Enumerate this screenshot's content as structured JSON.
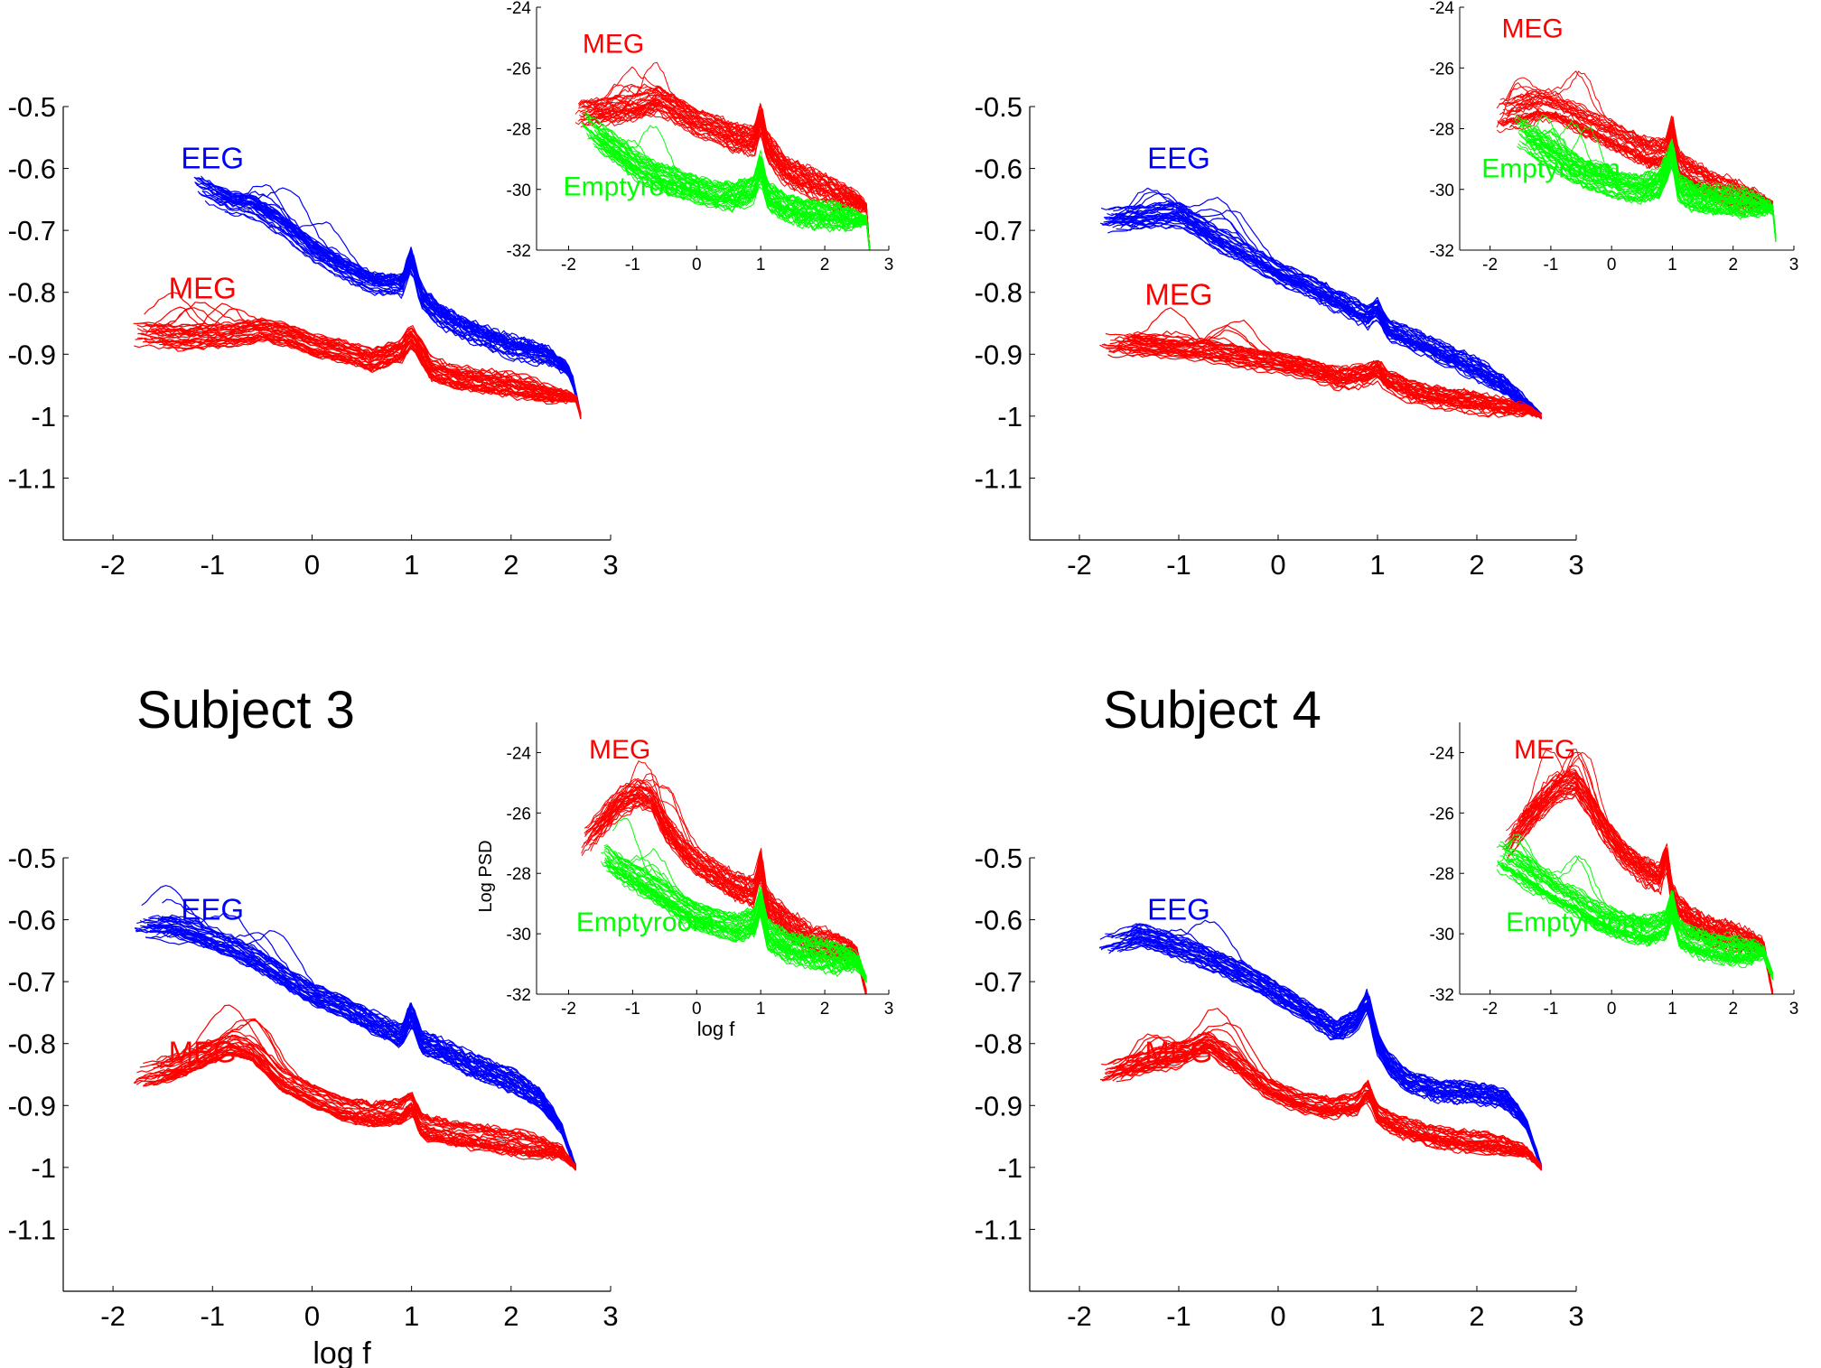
{
  "figure": {
    "left_tick_labels": [
      "-0.5",
      "-0.6",
      "-0.7",
      "-0.8",
      "-0.9",
      "-1",
      "-1.1"
    ],
    "x_tick_labels": [
      "-2",
      "-1",
      "0",
      "1",
      "2",
      "3"
    ],
    "inset_tick_labels": [
      "-24",
      "-26",
      "-28",
      "-30",
      "-32"
    ]
  },
  "colors": {
    "EEG": "#0000ff",
    "MEG": "#ff0000",
    "Emptyroom": "#00ff00",
    "axis": "#000000"
  },
  "chart_data": [
    {
      "type": "line",
      "panel": "top-left",
      "title": "",
      "xlabel": "",
      "ylabel": "",
      "xlim": [
        -2.5,
        3
      ],
      "ylim": [
        -1.2,
        -0.5
      ],
      "grid": false,
      "series": [
        {
          "name": "EEG",
          "x": [
            -1.2,
            -0.8,
            -0.6,
            -0.3,
            0,
            0.3,
            0.6,
            0.9,
            1.0,
            1.1,
            1.3,
            1.6,
            2.0,
            2.4,
            2.6,
            2.7
          ],
          "y": [
            -0.625,
            -0.655,
            -0.66,
            -0.69,
            -0.73,
            -0.76,
            -0.785,
            -0.79,
            -0.745,
            -0.81,
            -0.84,
            -0.865,
            -0.89,
            -0.905,
            -0.93,
            -1.0
          ]
        },
        {
          "name": "MEG",
          "x": [
            -1.8,
            -1.4,
            -1.0,
            -0.7,
            -0.5,
            -0.2,
            0,
            0.3,
            0.6,
            0.9,
            1.0,
            1.2,
            1.5,
            2.0,
            2.4,
            2.65,
            2.7
          ],
          "y": [
            -0.865,
            -0.87,
            -0.87,
            -0.865,
            -0.86,
            -0.87,
            -0.885,
            -0.895,
            -0.91,
            -0.895,
            -0.87,
            -0.925,
            -0.94,
            -0.95,
            -0.965,
            -0.97,
            -1.0
          ]
        }
      ],
      "inset": {
        "xlim": [
          -2.5,
          3
        ],
        "ylim": [
          -32,
          -24
        ],
        "xlabel": "",
        "ylabel": "",
        "series": [
          {
            "name": "MEG",
            "x": [
              -1.9,
              -1.5,
              -1.0,
              -0.6,
              -0.3,
              0,
              0.3,
              0.6,
              0.9,
              1.0,
              1.1,
              1.4,
              1.8,
              2.2,
              2.5,
              2.65,
              2.7
            ],
            "y": [
              -27.5,
              -27.4,
              -27.3,
              -27.0,
              -27.4,
              -27.8,
              -28.0,
              -28.3,
              -28.4,
              -27.6,
              -28.6,
              -29.4,
              -29.8,
              -30.2,
              -30.4,
              -30.6,
              -32
            ]
          },
          {
            "name": "Emptyroom",
            "x": [
              -1.8,
              -1.5,
              -1.2,
              -0.9,
              -0.6,
              -0.3,
              0,
              0.3,
              0.6,
              0.9,
              1.0,
              1.1,
              1.4,
              1.8,
              2.2,
              2.5,
              2.65,
              2.7
            ],
            "y": [
              -27.8,
              -28.3,
              -28.8,
              -29.3,
              -29.6,
              -29.8,
              -30.0,
              -30.2,
              -30.2,
              -30.0,
              -29.2,
              -30.2,
              -30.6,
              -30.8,
              -30.9,
              -31.0,
              -31.0,
              -32
            ]
          }
        ]
      }
    },
    {
      "type": "line",
      "panel": "top-right",
      "title": "",
      "xlabel": "",
      "ylabel": "",
      "xlim": [
        -2.5,
        3
      ],
      "ylim": [
        -1.2,
        -0.5
      ],
      "grid": false,
      "series": [
        {
          "name": "EEG",
          "x": [
            -1.8,
            -1.4,
            -1.0,
            -0.6,
            -0.2,
            0,
            0.3,
            0.6,
            0.9,
            1.0,
            1.1,
            1.3,
            1.6,
            2.0,
            2.3,
            2.5,
            2.65
          ],
          "y": [
            -0.685,
            -0.68,
            -0.675,
            -0.715,
            -0.75,
            -0.77,
            -0.79,
            -0.815,
            -0.84,
            -0.825,
            -0.86,
            -0.875,
            -0.895,
            -0.925,
            -0.955,
            -0.98,
            -1.0
          ]
        },
        {
          "name": "MEG",
          "x": [
            -1.8,
            -1.4,
            -1.0,
            -0.7,
            -0.4,
            0,
            0.3,
            0.6,
            0.9,
            1.0,
            1.1,
            1.4,
            1.8,
            2.2,
            2.5,
            2.65
          ],
          "y": [
            -0.885,
            -0.885,
            -0.89,
            -0.895,
            -0.905,
            -0.915,
            -0.925,
            -0.94,
            -0.935,
            -0.925,
            -0.945,
            -0.965,
            -0.975,
            -0.985,
            -0.99,
            -1.0
          ]
        }
      ],
      "inset": {
        "xlim": [
          -2.5,
          3
        ],
        "ylim": [
          -32,
          -24
        ],
        "xlabel": "",
        "ylabel": "",
        "series": [
          {
            "name": "MEG",
            "x": [
              -1.9,
              -1.5,
              -1.2,
              -0.9,
              -0.6,
              -0.3,
              0,
              0.3,
              0.6,
              0.9,
              1.0,
              1.1,
              1.4,
              1.8,
              2.2,
              2.5,
              2.65
            ],
            "y": [
              -27.6,
              -27.4,
              -27.2,
              -27.3,
              -27.6,
              -27.9,
              -28.2,
              -28.5,
              -28.8,
              -28.8,
              -28.0,
              -29.2,
              -29.6,
              -30.0,
              -30.3,
              -30.4,
              -30.5
            ]
          },
          {
            "name": "Emptyroom",
            "x": [
              -1.6,
              -1.3,
              -1.0,
              -0.7,
              -0.4,
              -0.1,
              0.2,
              0.5,
              0.8,
              1.0,
              1.1,
              1.4,
              1.8,
              2.2,
              2.5,
              2.65,
              2.7
            ],
            "y": [
              -28.0,
              -28.4,
              -28.8,
              -29.2,
              -29.5,
              -29.7,
              -29.9,
              -30.0,
              -29.8,
              -28.8,
              -30.0,
              -30.3,
              -30.4,
              -30.5,
              -30.6,
              -30.6,
              -31.6
            ]
          }
        ]
      }
    },
    {
      "type": "line",
      "panel": "bottom-left",
      "title": "Subject 3",
      "xlabel": "log f",
      "ylabel": "",
      "xlim": [
        -2.5,
        3
      ],
      "ylim": [
        -1.2,
        -0.5
      ],
      "grid": false,
      "series": [
        {
          "name": "EEG",
          "x": [
            -1.8,
            -1.4,
            -1.1,
            -0.8,
            -0.5,
            -0.2,
            0,
            0.3,
            0.6,
            0.9,
            1.0,
            1.1,
            1.3,
            1.6,
            2.0,
            2.3,
            2.5,
            2.65
          ],
          "y": [
            -0.61,
            -0.61,
            -0.625,
            -0.645,
            -0.67,
            -0.7,
            -0.72,
            -0.74,
            -0.765,
            -0.79,
            -0.75,
            -0.8,
            -0.81,
            -0.835,
            -0.86,
            -0.89,
            -0.935,
            -1.0
          ]
        },
        {
          "name": "MEG",
          "x": [
            -1.8,
            -1.4,
            -1.1,
            -0.8,
            -0.6,
            -0.3,
            0,
            0.3,
            0.6,
            0.9,
            1.0,
            1.1,
            1.4,
            1.8,
            2.2,
            2.5,
            2.65
          ],
          "y": [
            -0.855,
            -0.84,
            -0.82,
            -0.8,
            -0.81,
            -0.86,
            -0.885,
            -0.905,
            -0.915,
            -0.91,
            -0.895,
            -0.935,
            -0.945,
            -0.955,
            -0.965,
            -0.975,
            -1.0
          ]
        }
      ],
      "inset": {
        "xlim": [
          -2.5,
          3
        ],
        "ylim": [
          -32,
          -23
        ],
        "xlabel": "log f",
        "ylabel": "Log PSD",
        "series": [
          {
            "name": "MEG",
            "x": [
              -1.8,
              -1.5,
              -1.2,
              -0.9,
              -0.7,
              -0.5,
              -0.2,
              0,
              0.3,
              0.6,
              0.9,
              1.0,
              1.1,
              1.4,
              1.8,
              2.2,
              2.5,
              2.65
            ],
            "y": [
              -27.0,
              -26.3,
              -25.6,
              -25.3,
              -25.5,
              -26.4,
              -27.2,
              -27.6,
              -28.0,
              -28.4,
              -28.6,
              -27.6,
              -29.0,
              -29.6,
              -30.2,
              -30.4,
              -30.6,
              -32
            ]
          },
          {
            "name": "Emptyroom",
            "x": [
              -1.5,
              -1.2,
              -0.9,
              -0.6,
              -0.3,
              0,
              0.3,
              0.6,
              0.9,
              1.0,
              1.1,
              1.4,
              1.8,
              2.2,
              2.5,
              2.65
            ],
            "y": [
              -27.3,
              -27.8,
              -28.2,
              -28.6,
              -29.0,
              -29.4,
              -29.6,
              -29.8,
              -29.6,
              -28.8,
              -30.0,
              -30.4,
              -30.6,
              -30.8,
              -30.9,
              -31.5
            ]
          }
        ]
      }
    },
    {
      "type": "line",
      "panel": "bottom-right",
      "title": "Subject 4",
      "xlabel": "",
      "ylabel": "",
      "xlim": [
        -2.5,
        3
      ],
      "ylim": [
        -1.2,
        -0.5
      ],
      "grid": false,
      "series": [
        {
          "name": "EEG",
          "x": [
            -1.8,
            -1.4,
            -1.0,
            -0.6,
            -0.2,
            0,
            0.3,
            0.6,
            0.8,
            0.9,
            1.0,
            1.1,
            1.3,
            1.6,
            2.0,
            2.3,
            2.5,
            2.65
          ],
          "y": [
            -0.645,
            -0.625,
            -0.645,
            -0.67,
            -0.7,
            -0.72,
            -0.75,
            -0.78,
            -0.76,
            -0.73,
            -0.8,
            -0.83,
            -0.86,
            -0.875,
            -0.88,
            -0.89,
            -0.93,
            -1.0
          ]
        },
        {
          "name": "MEG",
          "x": [
            -1.8,
            -1.4,
            -1.0,
            -0.7,
            -0.4,
            -0.1,
            0.2,
            0.5,
            0.8,
            0.9,
            1.0,
            1.2,
            1.5,
            1.9,
            2.2,
            2.5,
            2.65
          ],
          "y": [
            -0.855,
            -0.835,
            -0.82,
            -0.8,
            -0.835,
            -0.875,
            -0.895,
            -0.905,
            -0.9,
            -0.875,
            -0.915,
            -0.935,
            -0.95,
            -0.96,
            -0.965,
            -0.975,
            -1.0
          ]
        }
      ],
      "inset": {
        "xlim": [
          -2.5,
          3
        ],
        "ylim": [
          -32,
          -23
        ],
        "xlabel": "",
        "ylabel": "",
        "series": [
          {
            "name": "MEG",
            "x": [
              -1.8,
              -1.5,
              -1.2,
              -0.9,
              -0.6,
              -0.4,
              -0.1,
              0.2,
              0.5,
              0.8,
              0.9,
              1.0,
              1.1,
              1.3,
              1.6,
              2.0,
              2.3,
              2.5,
              2.65
            ],
            "y": [
              -27.2,
              -26.5,
              -25.8,
              -25.2,
              -25.0,
              -25.6,
              -26.6,
              -27.4,
              -27.9,
              -28.2,
              -27.4,
              -28.8,
              -29.2,
              -29.6,
              -29.9,
              -30.1,
              -30.3,
              -30.4,
              -32
            ]
          },
          {
            "name": "Emptyroom",
            "x": [
              -1.9,
              -1.5,
              -1.2,
              -0.9,
              -0.6,
              -0.3,
              0,
              0.3,
              0.6,
              0.9,
              1.0,
              1.1,
              1.4,
              1.8,
              2.2,
              2.5,
              2.65
            ],
            "y": [
              -27.4,
              -27.8,
              -28.2,
              -28.6,
              -28.9,
              -29.3,
              -29.6,
              -29.8,
              -29.9,
              -29.7,
              -29.0,
              -30.0,
              -30.3,
              -30.5,
              -30.6,
              -30.6,
              -31.4
            ]
          }
        ]
      }
    }
  ]
}
